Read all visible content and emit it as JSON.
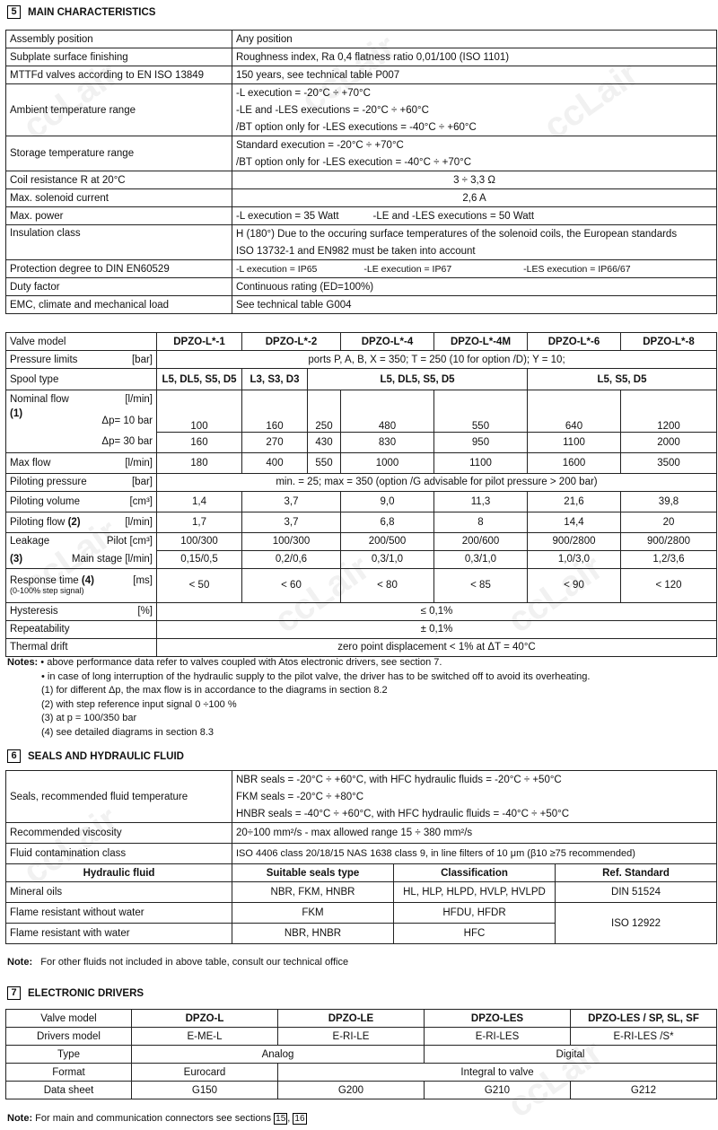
{
  "watermark": "ccLair",
  "s5": {
    "num": "5",
    "title": "MAIN CHARACTERISTICS",
    "rows": [
      [
        "Assembly position",
        "Any position"
      ],
      [
        "Subplate surface finishing",
        "Roughness index, Ra 0,4 flatness ratio 0,01/100 (ISO 1101)"
      ],
      [
        "MTTFd valves according to EN ISO 13849",
        "150 years, see technical table P007"
      ],
      [
        "Ambient temperature range",
        "-L execution = -20°C ÷ +70°C",
        "-LE and -LES executions = -20°C ÷ +60°C",
        "/BT option only for -LES executions = -40°C ÷ +60°C"
      ],
      [
        "Storage temperature range",
        "Standard execution = -20°C ÷ +70°C",
        "/BT option only for -LES execution = -40°C ÷ +70°C"
      ],
      [
        "Coil resistance R at 20°C",
        "3 ÷ 3,3 Ω"
      ],
      [
        "Max. solenoid current",
        "2,6 A"
      ],
      [
        "Max. power",
        "-L execution = 35 Watt",
        "-LE and -LES executions = 50 Watt"
      ],
      [
        "Insulation class",
        "H (180°) Due to the occuring surface temperatures of the solenoid coils, the European standards",
        "ISO 13732-1 and EN982 must be taken into account"
      ],
      [
        "Protection degree to DIN EN60529",
        "-L execution = IP65",
        "-LE execution = IP67",
        "-LES execution = IP66/67"
      ],
      [
        "Duty factor",
        "Continuous rating (ED=100%)"
      ],
      [
        "EMC, climate and mechanical load",
        "See technical table G004"
      ]
    ]
  },
  "perf": {
    "header": [
      "Valve model",
      "DPZO-L*-1",
      "DPZO-L*-2",
      "DPZO-L*-4",
      "DPZO-L*-4M",
      "DPZO-L*-6",
      "DPZO-L*-8"
    ],
    "pressure": {
      "label": "Pressure limits",
      "unit": "[bar]",
      "value": "ports P, A, B, X = 350;   T = 250 (10 for option /D);   Y = 10;"
    },
    "spool": {
      "label": "Spool type",
      "values": [
        "L5, DL5, S5, D5",
        "L3, S3, D3",
        "L5, DL5, S5, D5",
        "L5, S5, D5"
      ]
    },
    "nominal": {
      "label": "Nominal flow",
      "unit": "[l/min]",
      "note": "(1)",
      "dp10": "Δp= 10 bar",
      "dp30": "Δp= 30 bar",
      "v10": [
        "100",
        "160",
        "250",
        "480",
        "550",
        "640",
        "1200"
      ],
      "v30": [
        "160",
        "270",
        "430",
        "830",
        "950",
        "1100",
        "2000"
      ]
    },
    "maxflow": {
      "label": "Max flow",
      "unit": "[l/min]",
      "values": [
        "180",
        "400",
        "550",
        "1000",
        "1100",
        "1600",
        "3500"
      ]
    },
    "pilot_pressure": {
      "label": "Piloting pressure",
      "unit": "[bar]",
      "value": "min. = 25;    max = 350 (option /G advisable for pilot pressure > 200 bar)"
    },
    "pilot_volume": {
      "label": "Piloting volume",
      "unit": "[cm³]",
      "values": [
        "1,4",
        "3,7",
        "9,0",
        "11,3",
        "21,6",
        "39,8"
      ]
    },
    "pilot_flow": {
      "label": "Piloting flow",
      "note": "(2)",
      "unit": "[l/min]",
      "values": [
        "1,7",
        "3,7",
        "6,8",
        "8",
        "14,4",
        "20"
      ]
    },
    "leakage": {
      "label": "Leakage",
      "note": "(3)",
      "pilot": "Pilot [cm³]",
      "main": "Main stage [l/min]",
      "pilot_values": [
        "100/300",
        "100/300",
        "200/500",
        "200/600",
        "900/2800",
        "900/2800"
      ],
      "main_values": [
        "0,15/0,5",
        "0,2/0,6",
        "0,3/1,0",
        "0,3/1,0",
        "1,0/3,0",
        "1,2/3,6"
      ]
    },
    "response": {
      "label": "Response time",
      "note": "(4)",
      "unit": "[ms]",
      "sub": "(0-100% step signal)",
      "values": [
        "< 50",
        "< 60",
        "< 80",
        "< 85",
        "< 90",
        "< 120"
      ]
    },
    "hysteresis": {
      "label": "Hysteresis",
      "unit": "[%]",
      "value": "≤ 0,1%"
    },
    "repeatability": {
      "label": "Repeatability",
      "value": "± 0,1%"
    },
    "thermal": {
      "label": "Thermal drift",
      "value": "zero point displacement < 1% at ΔT = 40°C"
    }
  },
  "notes1": {
    "label": "Notes:",
    "items": [
      "• above performance data refer to valves coupled with Atos electronic drivers, see section 7.",
      "• in case of long interruption of the hydraulic supply to the pilot valve, the driver has to be switched off to avoid its overheating.",
      "(1) for different Δp, the max flow is in accordance to the diagrams in section 8.2",
      "(2) with step reference input signal 0 ÷100 %",
      "(3) at p = 100/350 bar",
      "(4) see detailed diagrams in section 8.3"
    ]
  },
  "s6": {
    "num": "6",
    "title": "SEALS AND HYDRAULIC FLUID",
    "seals_label": "Seals, recommended fluid temperature",
    "seals": [
      "NBR seals = -20°C ÷ +60°C, with HFC hydraulic fluids = -20°C ÷ +50°C",
      "FKM seals = -20°C ÷ +80°C",
      "HNBR seals = -40°C ÷ +60°C, with HFC hydraulic fluids = -40°C ÷ +50°C"
    ],
    "visc_label": "Recommended viscosity",
    "visc": "20÷100 mm²/s - max allowed range 15 ÷ 380 mm²/s",
    "cont_label": "Fluid contamination class",
    "cont": "ISO 4406  class 20/18/15  NAS 1638  class 9, in line filters of 10 μm (β10 ≥75 recommended)",
    "fluid_header": [
      "Hydraulic fluid",
      "Suitable seals type",
      "Classification",
      "Ref. Standard"
    ],
    "fluids": [
      [
        "Mineral oils",
        "NBR, FKM, HNBR",
        "HL, HLP, HLPD, HVLP, HVLPD",
        "DIN 51524"
      ],
      [
        "Flame resistant without water",
        "FKM",
        "HFDU, HFDR",
        "ISO 12922"
      ],
      [
        "Flame resistant with water",
        "NBR, HNBR",
        "HFC",
        ""
      ]
    ],
    "note_label": "Note:",
    "note": "For other fluids not included in above table, consult our technical office"
  },
  "s7": {
    "num": "7",
    "title": "ELECTRONIC DRIVERS",
    "header": [
      "Valve model",
      "DPZO-L",
      "DPZO-LE",
      "DPZO-LES",
      "DPZO-LES / SP, SL, SF"
    ],
    "drivers": [
      "Drivers model",
      "E-ME-L",
      "E-RI-LE",
      "E-RI-LES",
      "E-RI-LES /S*"
    ],
    "type": [
      "Type",
      "Analog",
      "Digital"
    ],
    "format": [
      "Format",
      "Eurocard",
      "Integral to valve"
    ],
    "sheet": [
      "Data sheet",
      "G150",
      "G200",
      "G210",
      "G212"
    ],
    "note_label": "Note:",
    "note": "For main and communication connectors see sections",
    "refs": [
      "15",
      "16"
    ]
  }
}
